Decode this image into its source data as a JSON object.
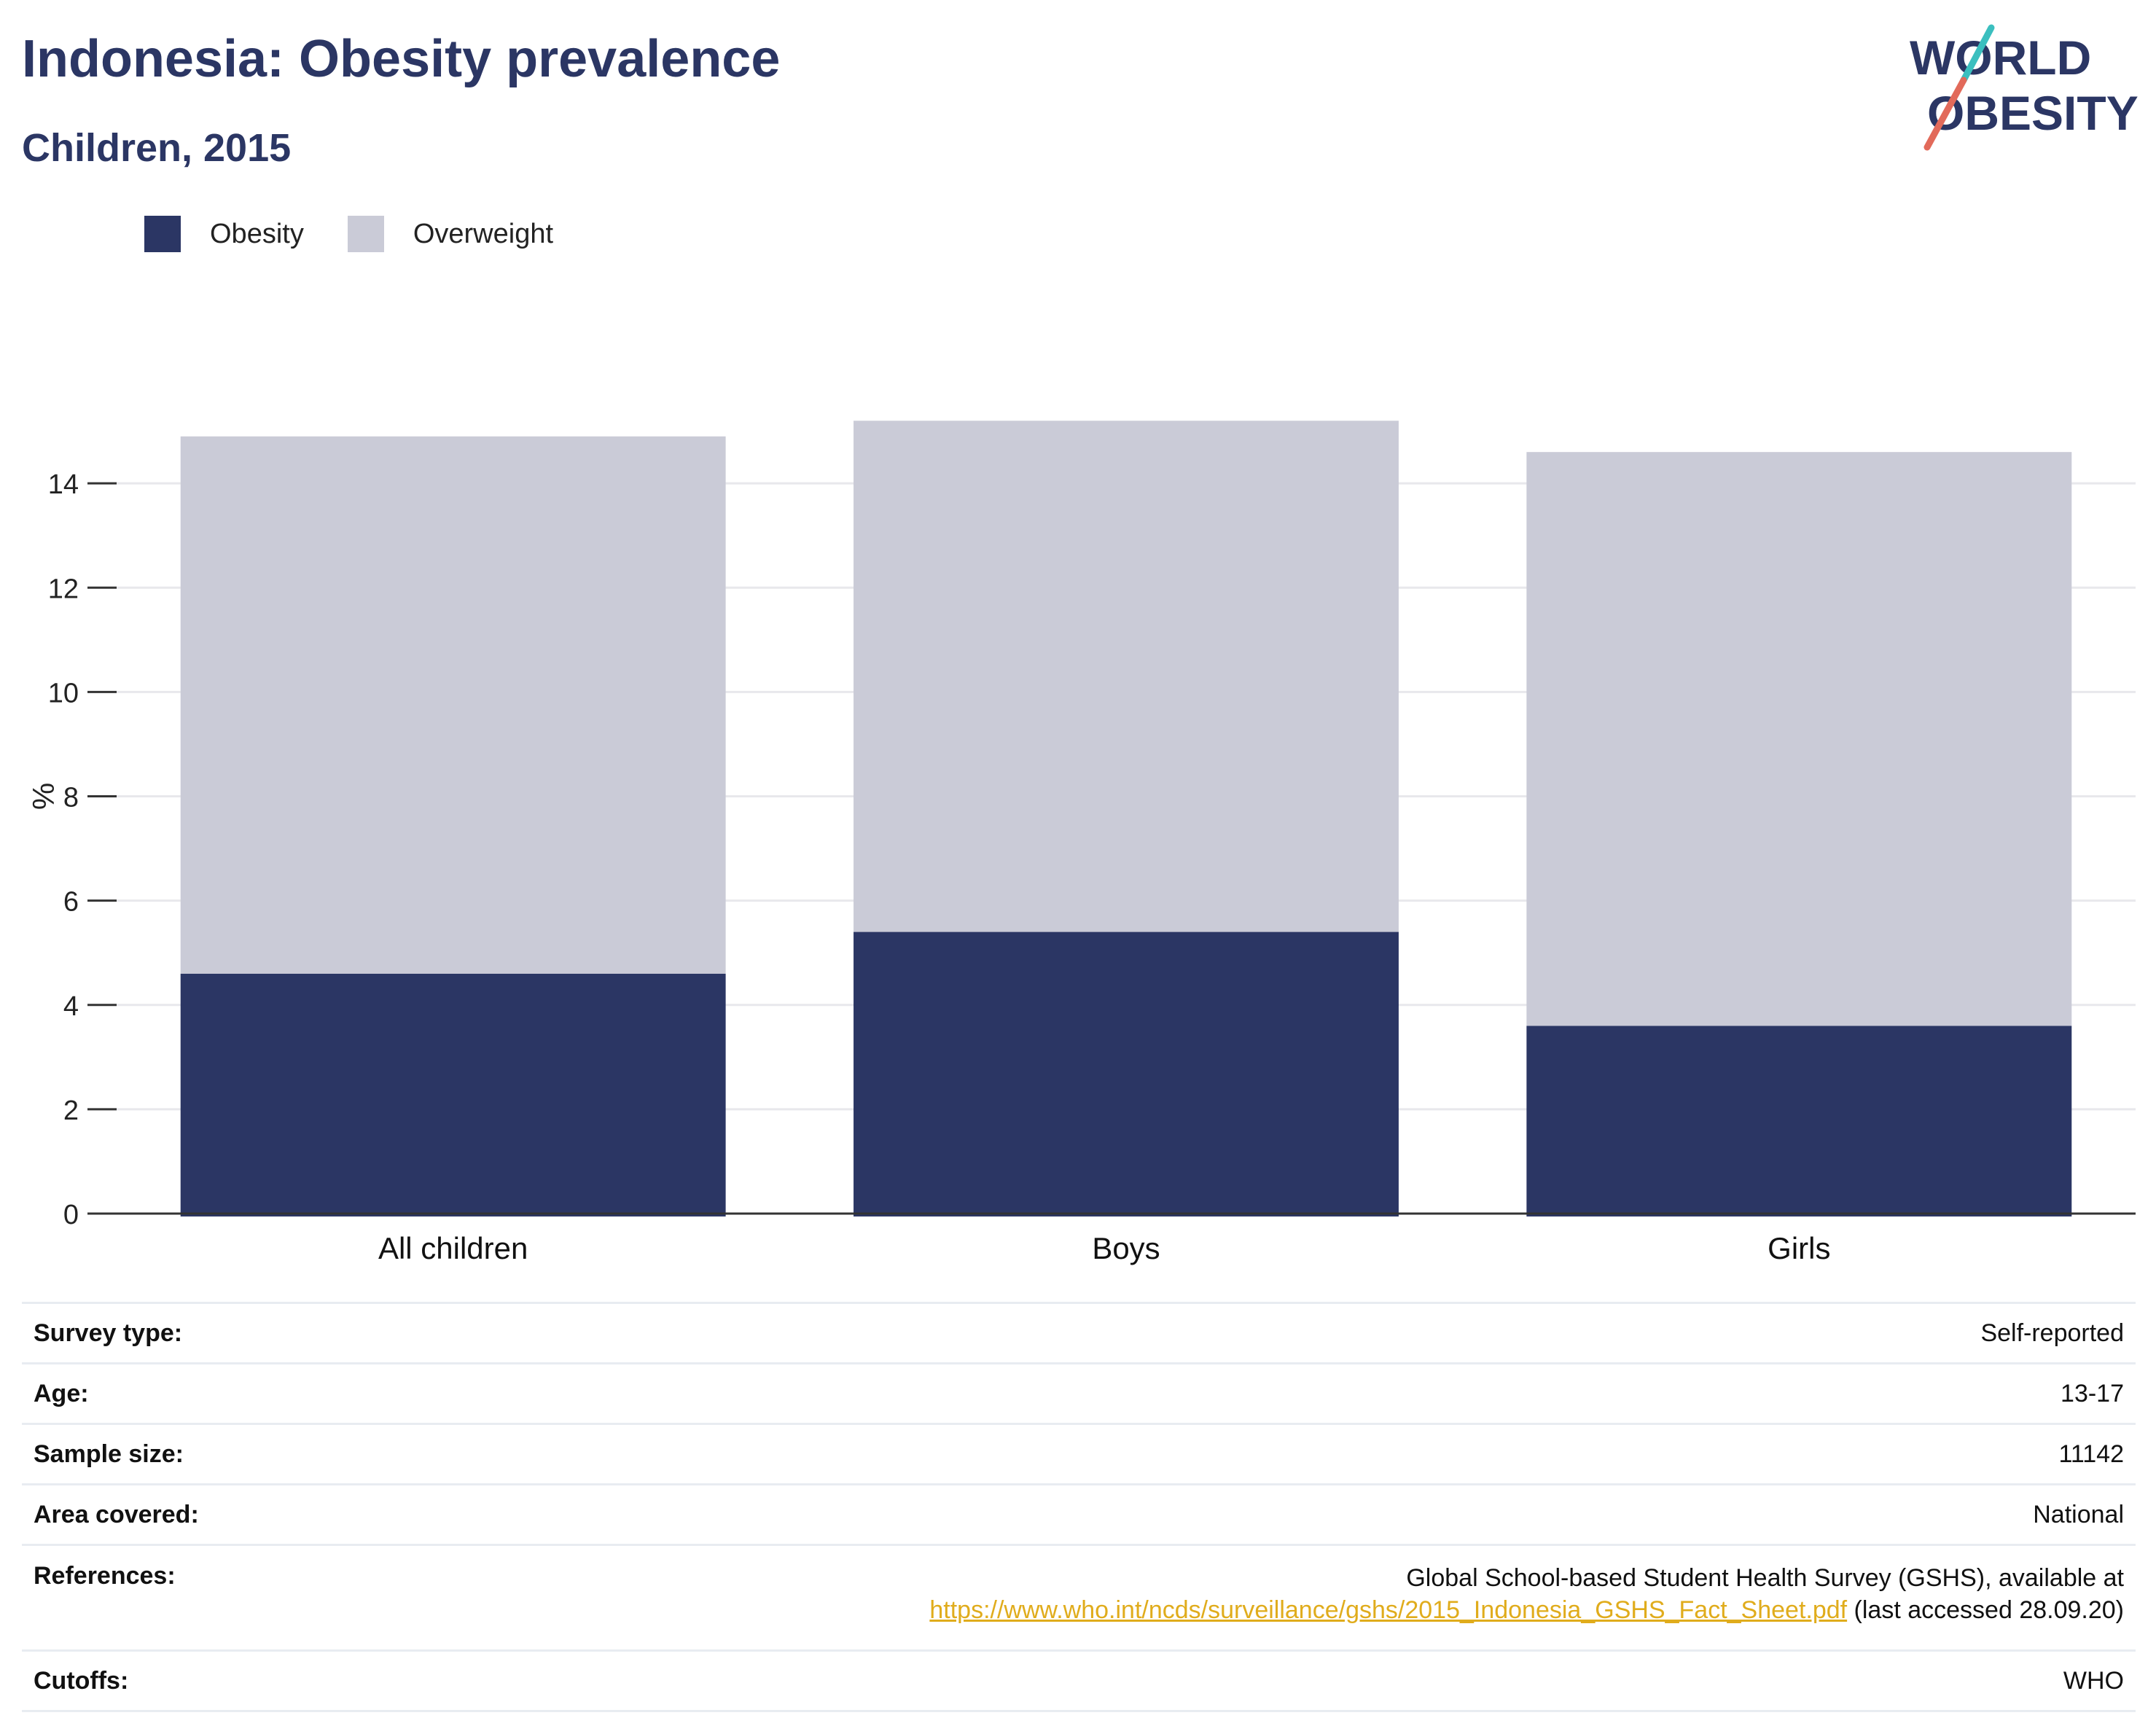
{
  "header": {
    "title": "Indonesia: Obesity prevalence",
    "subtitle": "Children, 2015",
    "logo_line1": "WORLD",
    "logo_line2": "OBESITY"
  },
  "colors": {
    "obesity": "#2b3664",
    "overweight": "#cacbd7",
    "axis": "#333333",
    "grid": "#e8e8ec",
    "link": "#e0ac1c",
    "logo_teal": "#3bbfbf",
    "logo_red": "#e26a5a"
  },
  "chart_data": {
    "type": "bar",
    "stacked": true,
    "categories": [
      "All children",
      "Boys",
      "Girls"
    ],
    "series": [
      {
        "name": "Obesity",
        "values": [
          4.6,
          5.4,
          3.6
        ]
      },
      {
        "name": "Overweight",
        "values": [
          10.3,
          9.8,
          11.0
        ]
      }
    ],
    "xlabel": "",
    "ylabel": "%",
    "ylim": [
      0,
      16
    ],
    "yticks": [
      0,
      2,
      4,
      6,
      8,
      10,
      12,
      14
    ],
    "grid": true,
    "legend": "top-left"
  },
  "details": {
    "survey_type_label": "Survey type:",
    "survey_type_value": "Self-reported",
    "age_label": "Age:",
    "age_value": "13-17",
    "sample_size_label": "Sample size:",
    "sample_size_value": "11142",
    "area_label": "Area covered:",
    "area_value": "National",
    "references_label": "References:",
    "references_text": "Global School-based Student Health Survey (GSHS), available at",
    "references_link": "https://www.who.int/ncds/surveillance/gshs/2015_Indonesia_GSHS_Fact_Sheet.pdf",
    "references_suffix": " (last accessed 28.09.20)",
    "cutoffs_label": "Cutoffs:",
    "cutoffs_value": "WHO"
  }
}
